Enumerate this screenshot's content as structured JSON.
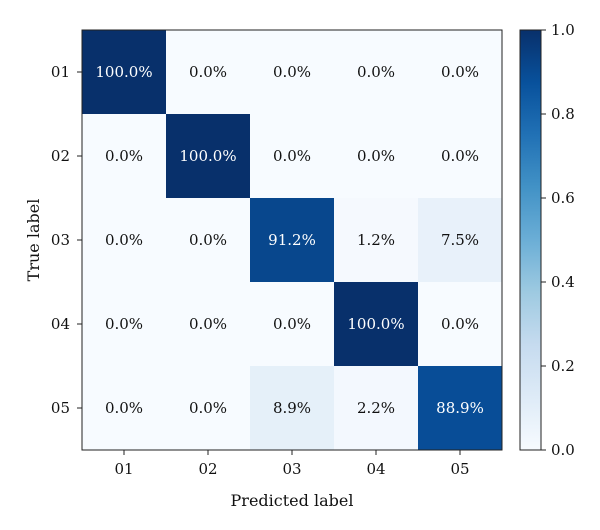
{
  "chart_data": {
    "type": "heatmap",
    "title": "",
    "xlabel": "Predicted label",
    "ylabel": "True label",
    "x_categories": [
      "01",
      "02",
      "03",
      "04",
      "05"
    ],
    "y_categories": [
      "01",
      "02",
      "03",
      "04",
      "05"
    ],
    "values": [
      [
        1.0,
        0.0,
        0.0,
        0.0,
        0.0
      ],
      [
        0.0,
        1.0,
        0.0,
        0.0,
        0.0
      ],
      [
        0.0,
        0.0,
        0.912,
        0.012,
        0.075
      ],
      [
        0.0,
        0.0,
        0.0,
        1.0,
        0.0
      ],
      [
        0.0,
        0.0,
        0.089,
        0.022,
        0.889
      ]
    ],
    "cell_labels": [
      [
        "100.0%",
        "0.0%",
        "0.0%",
        "0.0%",
        "0.0%"
      ],
      [
        "0.0%",
        "100.0%",
        "0.0%",
        "0.0%",
        "0.0%"
      ],
      [
        "0.0%",
        "0.0%",
        "91.2%",
        "1.2%",
        "7.5%"
      ],
      [
        "0.0%",
        "0.0%",
        "0.0%",
        "100.0%",
        "0.0%"
      ],
      [
        "0.0%",
        "0.0%",
        "8.9%",
        "2.2%",
        "88.9%"
      ]
    ],
    "colorbar": {
      "range": [
        0.0,
        1.0
      ],
      "ticks": [
        "0.0",
        "0.2",
        "0.4",
        "0.6",
        "0.8",
        "1.0"
      ],
      "colormap": "Blues",
      "colors": [
        "#f7fbff",
        "#deebf7",
        "#c6dbef",
        "#9ecae1",
        "#6baed6",
        "#4292c6",
        "#2171b5",
        "#08519c",
        "#08306b"
      ]
    },
    "grid": false
  }
}
